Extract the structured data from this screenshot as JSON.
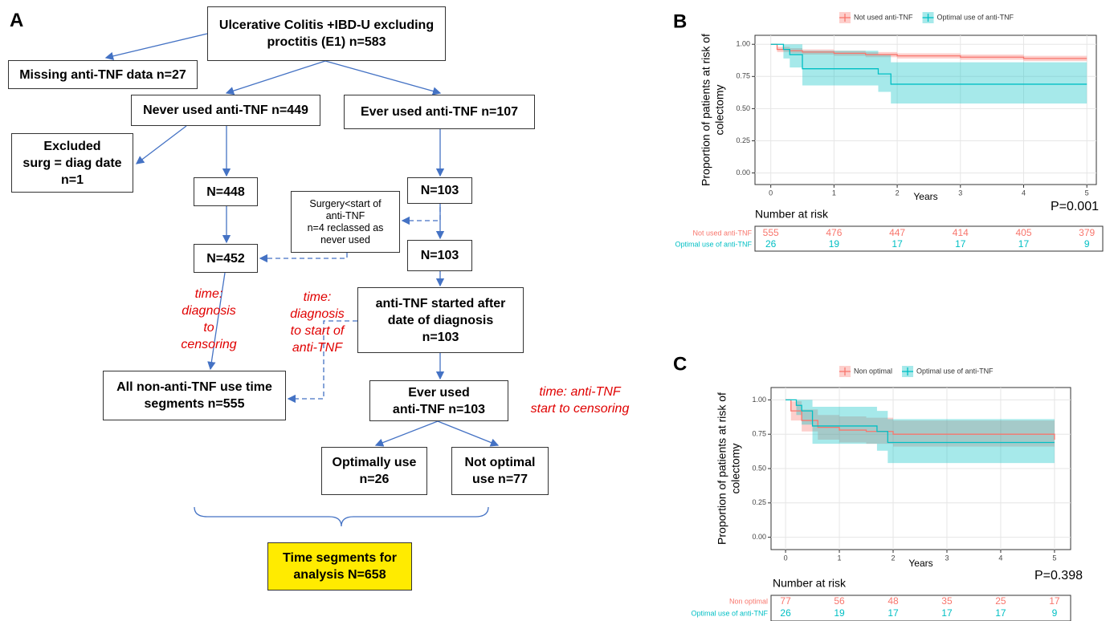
{
  "panels": {
    "a": "A"
  },
  "diagram": {
    "nodes": [
      {
        "lines": [
          "Ulcerative Colitis +IBD-U excluding",
          "proctitis (E1) n=583"
        ]
      },
      {
        "lines": [
          "Missing anti-TNF data n=27"
        ]
      },
      {
        "lines": [
          "Never used anti-TNF n=449"
        ]
      },
      {
        "lines": [
          "Ever used anti-TNF n=107"
        ]
      },
      {
        "lines": [
          "Excluded",
          "surg = diag date",
          "n=1"
        ]
      },
      {
        "lines": [
          "N=448"
        ]
      },
      {
        "lines": [
          "N=103"
        ]
      },
      {
        "lines": [
          "Surgery<start of",
          "anti-TNF",
          "n=4 reclassed as",
          "never used"
        ]
      },
      {
        "lines": [
          "N=452"
        ]
      },
      {
        "lines": [
          "N=103"
        ]
      },
      {
        "lines": [
          "anti-TNF started after",
          "date of diagnosis",
          "n=103"
        ]
      },
      {
        "lines": [
          "All non-anti-TNF use time",
          "segments n=555"
        ]
      },
      {
        "lines": [
          "Ever used",
          "anti-TNF n=103"
        ]
      },
      {
        "lines": [
          "Optimally use",
          "n=26"
        ]
      },
      {
        "lines": [
          "Not optimal",
          "use n=77"
        ]
      },
      {
        "lines": [
          "Time segments for",
          "analysis  N=658"
        ]
      }
    ],
    "annotations": [
      {
        "lines": [
          "time:",
          "diagnosis",
          "to",
          "censoring"
        ]
      },
      {
        "lines": [
          "time:",
          "diagnosis",
          "to start of",
          "anti-TNF"
        ]
      },
      {
        "lines": [
          "time: anti-TNF",
          "start to censoring"
        ]
      }
    ]
  },
  "chart_data": [
    {
      "type": "line",
      "panel": "B",
      "ylabel": [
        "Proportion of patients at risk of",
        "colectomy"
      ],
      "xlabel": "Years",
      "pvalue": "P=0.001",
      "legend": "top",
      "grid": true,
      "xlim": [
        -0.25,
        5.15
      ],
      "xticks": [
        0,
        1,
        2,
        3,
        4,
        5
      ],
      "ylim": [
        -0.09,
        1.07
      ],
      "yticks": [
        {
          "value": 0,
          "label": "0.00"
        },
        {
          "value": 0.25,
          "label": "0.25"
        },
        {
          "value": 0.5,
          "label": "0.50"
        },
        {
          "value": 0.75,
          "label": "0.75"
        },
        {
          "value": 1,
          "label": "1.00"
        }
      ],
      "series": [
        {
          "name": "Not used anti-TNF",
          "color": "#f8766d",
          "x": [
            0,
            0.1,
            0.3,
            0.5,
            1,
            1.5,
            2,
            3,
            4,
            5
          ],
          "values": [
            1,
            0.96,
            0.95,
            0.94,
            0.93,
            0.92,
            0.91,
            0.9,
            0.89,
            0.89
          ],
          "lower": [
            1,
            0.94,
            0.93,
            0.92,
            0.91,
            0.9,
            0.89,
            0.88,
            0.87,
            0.86
          ],
          "upper": [
            1,
            0.98,
            0.97,
            0.96,
            0.95,
            0.94,
            0.93,
            0.92,
            0.91,
            0.91
          ]
        },
        {
          "name": "Optimal use of anti-TNF",
          "color": "#00bfc4",
          "x": [
            0,
            0.2,
            0.3,
            0.5,
            1.7,
            1.9,
            5
          ],
          "values": [
            1,
            0.96,
            0.92,
            0.81,
            0.77,
            0.69,
            0.69
          ],
          "lower": [
            1,
            0.89,
            0.82,
            0.68,
            0.63,
            0.54,
            0.53
          ],
          "upper": [
            1,
            1,
            1,
            0.95,
            0.92,
            0.86,
            0.87
          ]
        }
      ],
      "risk_table": {
        "title": "Number at risk",
        "rows": [
          {
            "name": "Not used anti-TNF",
            "color": "#f8766d",
            "values": [
              555,
              476,
              447,
              414,
              405,
              379
            ]
          },
          {
            "name": "Optimal use of anti-TNF",
            "color": "#00bfc4",
            "values": [
              26,
              19,
              17,
              17,
              17,
              9
            ]
          }
        ]
      }
    },
    {
      "type": "line",
      "panel": "C",
      "ylabel": [
        "Proportion of patients at risk of",
        "colectomy"
      ],
      "xlabel": "Years",
      "pvalue": "P=0.398",
      "legend": "top",
      "grid": true,
      "xlim": [
        -0.27,
        5.3
      ],
      "xticks": [
        0,
        1,
        2,
        3,
        4,
        5
      ],
      "ylim": [
        -0.09,
        1.09
      ],
      "yticks": [
        {
          "value": 0,
          "label": "0.00"
        },
        {
          "value": 0.25,
          "label": "0.25"
        },
        {
          "value": 0.5,
          "label": "0.50"
        },
        {
          "value": 0.75,
          "label": "0.75"
        },
        {
          "value": 1,
          "label": "1.00"
        }
      ],
      "series": [
        {
          "name": "Non optimal",
          "color": "#f8766d",
          "x": [
            0,
            0.1,
            0.3,
            0.6,
            1,
            1.5,
            2,
            5
          ],
          "values": [
            1,
            0.92,
            0.85,
            0.8,
            0.78,
            0.77,
            0.75,
            0.71
          ],
          "lower": [
            1,
            0.85,
            0.77,
            0.71,
            0.69,
            0.68,
            0.66,
            0.61
          ],
          "upper": [
            1,
            0.99,
            0.93,
            0.89,
            0.88,
            0.87,
            0.85,
            0.83
          ]
        },
        {
          "name": "Optimal use of anti-TNF",
          "color": "#00bfc4",
          "x": [
            0,
            0.2,
            0.3,
            0.5,
            1.7,
            1.9,
            5
          ],
          "values": [
            1,
            0.96,
            0.92,
            0.81,
            0.77,
            0.69,
            0.69
          ],
          "lower": [
            1,
            0.89,
            0.82,
            0.68,
            0.63,
            0.54,
            0.53
          ],
          "upper": [
            1,
            1,
            1,
            0.95,
            0.92,
            0.86,
            0.87
          ]
        }
      ],
      "risk_table": {
        "title": "Number at risk",
        "rows": [
          {
            "name": "Non optimal",
            "color": "#f8766d",
            "values": [
              77,
              56,
              48,
              35,
              25,
              17
            ]
          },
          {
            "name": "Optimal use of anti-TNF",
            "color": "#00bfc4",
            "values": [
              26,
              19,
              17,
              17,
              17,
              9
            ]
          }
        ]
      }
    }
  ]
}
